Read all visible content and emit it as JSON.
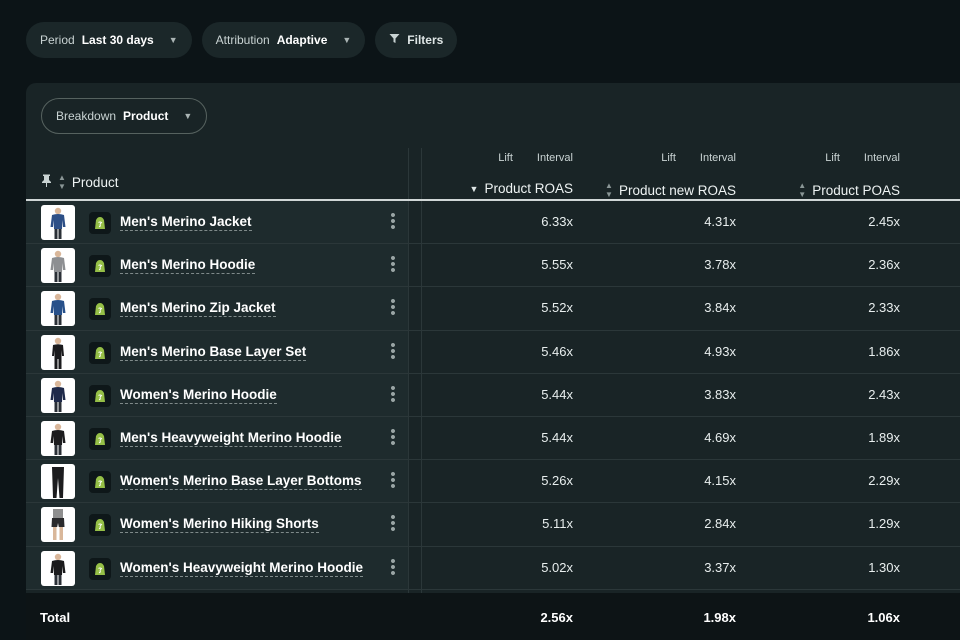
{
  "filters": {
    "period": {
      "label": "Period",
      "value": "Last 30 days"
    },
    "attribution": {
      "label": "Attribution",
      "value": "Adaptive"
    },
    "filters_label": "Filters"
  },
  "breakdown": {
    "label": "Breakdown",
    "value": "Product"
  },
  "table": {
    "product_header": "Product",
    "columns": [
      {
        "lift": "Lift",
        "interval": "Interval",
        "title": "Product ROAS",
        "sort": "desc"
      },
      {
        "lift": "Lift",
        "interval": "Interval",
        "title": "Product new ROAS",
        "sort": "none"
      },
      {
        "lift": "Lift",
        "interval": "Interval",
        "title": "Product POAS",
        "sort": "none"
      }
    ],
    "rows": [
      {
        "name": "Men's Merino Jacket",
        "roas": "6.33x",
        "new_roas": "4.31x",
        "poas": "2.45x",
        "garment": "jacket",
        "color": "#2d4f86"
      },
      {
        "name": "Men's Merino Hoodie",
        "roas": "5.55x",
        "new_roas": "3.78x",
        "poas": "2.36x",
        "garment": "hoodie",
        "color": "#8d8f92"
      },
      {
        "name": "Men's Merino Zip Jacket",
        "roas": "5.52x",
        "new_roas": "3.84x",
        "poas": "2.33x",
        "garment": "jacket",
        "color": "#27508a"
      },
      {
        "name": "Men's Merino Base Layer Set",
        "roas": "5.46x",
        "new_roas": "4.93x",
        "poas": "1.86x",
        "garment": "base",
        "color": "#1b1b1d"
      },
      {
        "name": "Women's Merino Hoodie",
        "roas": "5.44x",
        "new_roas": "3.83x",
        "poas": "2.43x",
        "garment": "hoodie",
        "color": "#1f2a4a"
      },
      {
        "name": "Men's Heavyweight Merino Hoodie",
        "roas": "5.44x",
        "new_roas": "4.69x",
        "poas": "1.89x",
        "garment": "hoodie",
        "color": "#1c1c1e"
      },
      {
        "name": "Women's Merino Base Layer Bottoms",
        "roas": "5.26x",
        "new_roas": "4.15x",
        "poas": "2.29x",
        "garment": "bottoms",
        "color": "#1c1c1e"
      },
      {
        "name": "Women's Merino Hiking Shorts",
        "roas": "5.11x",
        "new_roas": "2.84x",
        "poas": "1.29x",
        "garment": "shorts",
        "color": "#2a2a2c"
      },
      {
        "name": "Women's Heavyweight Merino Hoodie",
        "roas": "5.02x",
        "new_roas": "3.37x",
        "poas": "1.30x",
        "garment": "hoodie",
        "color": "#1a1a1c"
      }
    ],
    "total": {
      "label": "Total",
      "roas": "2.56x",
      "new_roas": "1.98x",
      "poas": "1.06x"
    }
  },
  "colors": {
    "background": "#0c1417",
    "panel": "#192426",
    "pill": "#1b2729",
    "shopify_green": "#95bf47"
  }
}
